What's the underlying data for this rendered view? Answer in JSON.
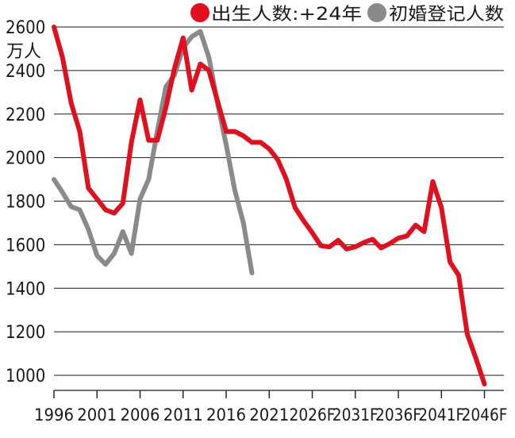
{
  "chart_data": {
    "type": "line",
    "ylabel": "万人",
    "ylim": [
      900,
      2620
    ],
    "yticks": [
      1000,
      1200,
      1400,
      1600,
      1800,
      2000,
      2200,
      2400,
      2600
    ],
    "xlim": [
      1996,
      2048
    ],
    "xticks": [
      {
        "year": 1996,
        "label": "1996"
      },
      {
        "year": 2001,
        "label": "2001"
      },
      {
        "year": 2006,
        "label": "2006"
      },
      {
        "year": 2011,
        "label": "2011"
      },
      {
        "year": 2016,
        "label": "2016"
      },
      {
        "year": 2021,
        "label": "2021"
      },
      {
        "year": 2026,
        "label": "2026F"
      },
      {
        "year": 2031,
        "label": "2031F"
      },
      {
        "year": 2036,
        "label": "2036F"
      },
      {
        "year": 2041,
        "label": "2041F"
      },
      {
        "year": 2046,
        "label": "2046F"
      }
    ],
    "grid": "horizontal",
    "legend_position": "top-right",
    "series": [
      {
        "name": "出生人数:+24年",
        "color": "#e0101e",
        "points": [
          [
            1996,
            2600
          ],
          [
            1997,
            2460
          ],
          [
            1998,
            2250
          ],
          [
            1999,
            2120
          ],
          [
            2000,
            1860
          ],
          [
            2001,
            1810
          ],
          [
            2002,
            1760
          ],
          [
            2003,
            1745
          ],
          [
            2004,
            1790
          ],
          [
            2005,
            2070
          ],
          [
            2006,
            2265
          ],
          [
            2007,
            2080
          ],
          [
            2008,
            2080
          ],
          [
            2009,
            2230
          ],
          [
            2010,
            2410
          ],
          [
            2011,
            2550
          ],
          [
            2012,
            2310
          ],
          [
            2013,
            2430
          ],
          [
            2014,
            2400
          ],
          [
            2015,
            2260
          ],
          [
            2016,
            2120
          ],
          [
            2017,
            2120
          ],
          [
            2018,
            2100
          ],
          [
            2019,
            2070
          ],
          [
            2020,
            2070
          ],
          [
            2021,
            2040
          ],
          [
            2022,
            1990
          ],
          [
            2023,
            1900
          ],
          [
            2024,
            1770
          ],
          [
            2025,
            1710
          ],
          [
            2026,
            1655
          ],
          [
            2027,
            1595
          ],
          [
            2028,
            1590
          ],
          [
            2029,
            1620
          ],
          [
            2030,
            1580
          ],
          [
            2031,
            1590
          ],
          [
            2032,
            1610
          ],
          [
            2033,
            1625
          ],
          [
            2034,
            1585
          ],
          [
            2035,
            1605
          ],
          [
            2036,
            1630
          ],
          [
            2037,
            1640
          ],
          [
            2038,
            1690
          ],
          [
            2039,
            1660
          ],
          [
            2040,
            1890
          ],
          [
            2041,
            1770
          ],
          [
            2042,
            1520
          ],
          [
            2043,
            1460
          ],
          [
            2044,
            1190
          ],
          [
            2045,
            1080
          ],
          [
            2046,
            960
          ]
        ]
      },
      {
        "name": "初婚登记人数",
        "color": "#8a8a8a",
        "points": [
          [
            1996,
            1900
          ],
          [
            1997,
            1840
          ],
          [
            1998,
            1775
          ],
          [
            1999,
            1760
          ],
          [
            2000,
            1670
          ],
          [
            2001,
            1550
          ],
          [
            2002,
            1510
          ],
          [
            2003,
            1560
          ],
          [
            2004,
            1660
          ],
          [
            2005,
            1560
          ],
          [
            2006,
            1810
          ],
          [
            2007,
            1900
          ],
          [
            2008,
            2120
          ],
          [
            2009,
            2325
          ],
          [
            2010,
            2380
          ],
          [
            2011,
            2505
          ],
          [
            2012,
            2555
          ],
          [
            2013,
            2580
          ],
          [
            2014,
            2460
          ],
          [
            2015,
            2250
          ],
          [
            2016,
            2060
          ],
          [
            2017,
            1850
          ],
          [
            2018,
            1700
          ],
          [
            2019,
            1470
          ]
        ]
      }
    ]
  }
}
